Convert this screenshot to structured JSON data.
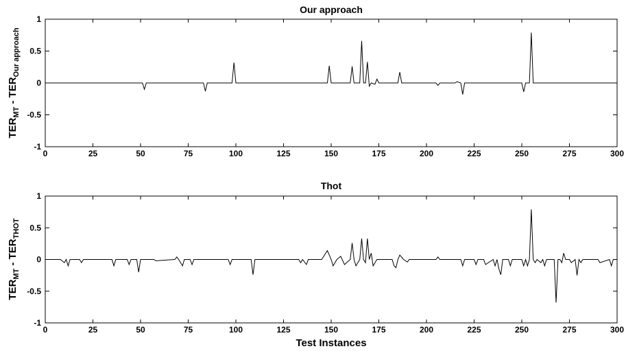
{
  "chart_data": [
    {
      "type": "line",
      "title": "Our approach",
      "ylabel_main": "TER",
      "ylabel_sub1": "MT",
      "ylabel_mid": " - TER",
      "ylabel_sub2": "Our approach",
      "xlabel": "",
      "xlim": [
        0,
        300
      ],
      "ylim": [
        -1,
        1
      ],
      "xticks": [
        "0",
        "25",
        "50",
        "75",
        "100",
        "125",
        "150",
        "175",
        "200",
        "225",
        "250",
        "275",
        "300"
      ],
      "yticks": [
        "1",
        "0.5",
        "0",
        "-0.5",
        "-1"
      ],
      "series": [
        {
          "x": [
            0,
            51,
            52,
            53,
            83,
            84,
            85,
            98,
            99,
            100,
            148,
            149,
            150,
            160,
            161,
            162,
            165,
            166,
            167,
            168,
            169,
            170,
            171,
            173,
            174,
            175,
            185,
            186,
            187,
            205,
            206,
            207,
            215,
            216,
            218,
            219,
            220,
            250,
            251,
            252,
            254,
            255,
            256,
            300
          ],
          "y": [
            0,
            0,
            -0.1,
            0,
            0,
            -0.13,
            0,
            0,
            0.32,
            0,
            0,
            0.27,
            0,
            0,
            0.26,
            0,
            0,
            0.66,
            0,
            0,
            0.33,
            -0.05,
            0,
            -0.02,
            0.06,
            0,
            0,
            0.17,
            0,
            0,
            -0.04,
            0,
            0,
            0.02,
            0,
            -0.18,
            0,
            0,
            -0.14,
            0,
            0,
            0.79,
            0,
            0
          ]
        }
      ]
    },
    {
      "type": "line",
      "title": "Thot",
      "ylabel_main": "TER",
      "ylabel_sub1": "MT",
      "ylabel_mid": " - TER",
      "ylabel_sub2": "THOT",
      "xlabel": "Test Instances",
      "xlim": [
        0,
        300
      ],
      "ylim": [
        -1,
        1
      ],
      "xticks": [
        "0",
        "25",
        "50",
        "75",
        "100",
        "125",
        "150",
        "175",
        "200",
        "225",
        "250",
        "275",
        "300"
      ],
      "yticks": [
        "1",
        "0.5",
        "0",
        "-0.5",
        "-1"
      ],
      "series": [
        {
          "x": [
            0,
            8,
            10,
            11,
            12,
            13,
            18,
            19,
            20,
            35,
            36,
            37,
            43,
            44,
            45,
            48,
            49,
            50,
            57,
            58,
            68,
            69,
            70,
            71,
            72,
            73,
            76,
            77,
            78,
            96,
            97,
            98,
            108,
            109,
            110,
            133,
            134,
            135,
            137,
            138,
            145,
            148,
            150,
            151,
            153,
            155,
            157,
            160,
            161,
            162,
            163,
            165,
            166,
            167,
            168,
            169,
            170,
            171,
            172,
            174,
            175,
            182,
            183,
            184,
            185,
            186,
            188,
            190,
            191,
            205,
            206,
            207,
            218,
            219,
            220,
            225,
            226,
            227,
            230,
            231,
            235,
            236,
            237,
            238,
            239,
            240,
            243,
            244,
            245,
            250,
            251,
            252,
            253,
            254,
            255,
            256,
            257,
            258,
            260,
            261,
            262,
            263,
            265,
            267,
            268,
            269,
            270,
            271,
            272,
            273,
            275,
            276,
            278,
            279,
            280,
            281,
            282,
            290,
            291,
            296,
            297,
            298,
            300
          ],
          "y": [
            0,
            0,
            -0.05,
            0,
            -0.1,
            0,
            0,
            -0.05,
            0,
            0,
            -0.1,
            0,
            0,
            -0.08,
            0,
            0,
            -0.2,
            0,
            0,
            -0.02,
            0,
            0.04,
            0,
            -0.05,
            -0.1,
            0,
            0,
            -0.08,
            0,
            0,
            -0.08,
            0,
            0,
            -0.24,
            0,
            0,
            -0.05,
            0,
            -0.08,
            0,
            0,
            0.14,
            0,
            -0.1,
            0,
            0.05,
            -0.08,
            0,
            0.26,
            0,
            -0.1,
            0,
            0.33,
            0,
            -0.05,
            0.33,
            0,
            0.1,
            -0.1,
            0,
            0,
            0,
            -0.1,
            -0.13,
            0,
            0.07,
            0,
            -0.04,
            0,
            0,
            0.04,
            0,
            0,
            -0.1,
            0,
            0,
            -0.08,
            0,
            0,
            -0.08,
            0,
            -0.1,
            0,
            -0.15,
            -0.24,
            0,
            0,
            -0.1,
            0,
            0,
            -0.1,
            0,
            -0.1,
            0,
            0.79,
            0,
            -0.05,
            0,
            -0.05,
            0,
            -0.1,
            0,
            0,
            0,
            -0.68,
            0,
            0,
            -0.05,
            0.1,
            0,
            0,
            -0.05,
            0,
            -0.25,
            0,
            -0.05,
            0,
            0,
            -0.05,
            0,
            -0.1,
            0,
            0
          ]
        }
      ]
    }
  ]
}
